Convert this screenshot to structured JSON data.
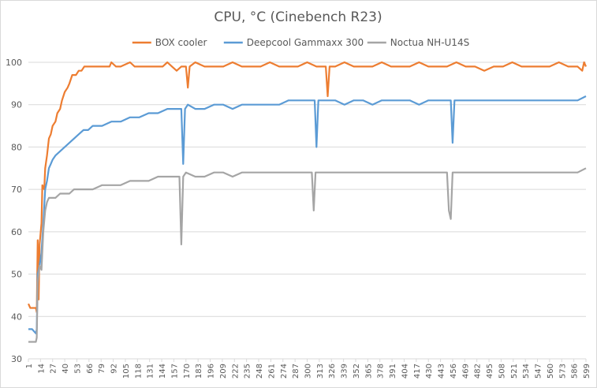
{
  "chart_data": {
    "type": "line",
    "title": "CPU, °C (Cinebench R23)",
    "xlabel": "",
    "ylabel": "",
    "ylim": [
      30,
      100
    ],
    "yticks": [
      30,
      40,
      50,
      60,
      70,
      80,
      90,
      100
    ],
    "xlim": [
      1,
      599
    ],
    "xtick_labels": [
      "1",
      "14",
      "27",
      "40",
      "53",
      "66",
      "79",
      "92",
      "105",
      "118",
      "131",
      "144",
      "157",
      "170",
      "183",
      "196",
      "209",
      "222",
      "235",
      "248",
      "261",
      "274",
      "287",
      "300",
      "313",
      "326",
      "339",
      "352",
      "365",
      "378",
      "391",
      "404",
      "417",
      "430",
      "443",
      "456",
      "469",
      "482",
      "495",
      "508",
      "521",
      "534",
      "547",
      "560",
      "573",
      "586",
      "599"
    ],
    "grid": "horizontal",
    "legend": "top-center",
    "series": [
      {
        "name": "BOX cooler",
        "color": "#ED7D31",
        "points": [
          [
            1,
            43
          ],
          [
            3,
            42
          ],
          [
            5,
            42
          ],
          [
            9,
            42
          ],
          [
            10,
            41
          ],
          [
            11,
            58
          ],
          [
            12,
            44
          ],
          [
            13,
            57
          ],
          [
            15,
            62
          ],
          [
            16,
            71
          ],
          [
            18,
            70
          ],
          [
            19,
            75
          ],
          [
            21,
            78
          ],
          [
            23,
            82
          ],
          [
            25,
            83
          ],
          [
            27,
            85
          ],
          [
            30,
            86
          ],
          [
            32,
            88
          ],
          [
            35,
            89
          ],
          [
            37,
            91
          ],
          [
            40,
            93
          ],
          [
            43,
            94
          ],
          [
            45,
            95
          ],
          [
            48,
            97
          ],
          [
            52,
            97
          ],
          [
            55,
            98
          ],
          [
            58,
            98
          ],
          [
            61,
            99
          ],
          [
            70,
            99
          ],
          [
            80,
            99
          ],
          [
            88,
            99
          ],
          [
            90,
            100
          ],
          [
            95,
            99
          ],
          [
            100,
            99
          ],
          [
            110,
            100
          ],
          [
            115,
            99
          ],
          [
            125,
            99
          ],
          [
            135,
            99
          ],
          [
            145,
            99
          ],
          [
            150,
            100
          ],
          [
            155,
            99
          ],
          [
            160,
            98
          ],
          [
            165,
            99
          ],
          [
            170,
            99
          ],
          [
            172,
            94
          ],
          [
            174,
            99
          ],
          [
            180,
            100
          ],
          [
            190,
            99
          ],
          [
            200,
            99
          ],
          [
            210,
            99
          ],
          [
            220,
            100
          ],
          [
            230,
            99
          ],
          [
            240,
            99
          ],
          [
            250,
            99
          ],
          [
            260,
            100
          ],
          [
            270,
            99
          ],
          [
            280,
            99
          ],
          [
            290,
            99
          ],
          [
            300,
            100
          ],
          [
            310,
            99
          ],
          [
            318,
            99
          ],
          [
            320,
            99
          ],
          [
            322,
            92
          ],
          [
            324,
            99
          ],
          [
            330,
            99
          ],
          [
            340,
            100
          ],
          [
            350,
            99
          ],
          [
            360,
            99
          ],
          [
            370,
            99
          ],
          [
            380,
            100
          ],
          [
            390,
            99
          ],
          [
            400,
            99
          ],
          [
            410,
            99
          ],
          [
            420,
            100
          ],
          [
            430,
            99
          ],
          [
            440,
            99
          ],
          [
            450,
            99
          ],
          [
            460,
            100
          ],
          [
            470,
            99
          ],
          [
            480,
            99
          ],
          [
            490,
            98
          ],
          [
            500,
            99
          ],
          [
            510,
            99
          ],
          [
            520,
            100
          ],
          [
            530,
            99
          ],
          [
            540,
            99
          ],
          [
            550,
            99
          ],
          [
            560,
            99
          ],
          [
            570,
            100
          ],
          [
            580,
            99
          ],
          [
            590,
            99
          ],
          [
            595,
            98
          ],
          [
            597,
            100
          ],
          [
            599,
            99
          ]
        ]
      },
      {
        "name": "Deepcool Gammaxx 300",
        "color": "#5B9BD5",
        "points": [
          [
            1,
            37
          ],
          [
            5,
            37
          ],
          [
            9,
            36
          ],
          [
            10,
            37
          ],
          [
            11,
            50
          ],
          [
            13,
            52
          ],
          [
            15,
            55
          ],
          [
            17,
            62
          ],
          [
            19,
            70
          ],
          [
            21,
            72
          ],
          [
            23,
            75
          ],
          [
            25,
            76
          ],
          [
            27,
            77
          ],
          [
            30,
            78
          ],
          [
            35,
            79
          ],
          [
            40,
            80
          ],
          [
            45,
            81
          ],
          [
            50,
            82
          ],
          [
            55,
            83
          ],
          [
            60,
            84
          ],
          [
            65,
            84
          ],
          [
            70,
            85
          ],
          [
            80,
            85
          ],
          [
            90,
            86
          ],
          [
            100,
            86
          ],
          [
            110,
            87
          ],
          [
            120,
            87
          ],
          [
            130,
            88
          ],
          [
            140,
            88
          ],
          [
            150,
            89
          ],
          [
            160,
            89
          ],
          [
            165,
            89
          ],
          [
            167,
            76
          ],
          [
            169,
            89
          ],
          [
            172,
            90
          ],
          [
            180,
            89
          ],
          [
            190,
            89
          ],
          [
            200,
            90
          ],
          [
            210,
            90
          ],
          [
            220,
            89
          ],
          [
            230,
            90
          ],
          [
            240,
            90
          ],
          [
            250,
            90
          ],
          [
            260,
            90
          ],
          [
            270,
            90
          ],
          [
            280,
            91
          ],
          [
            290,
            91
          ],
          [
            300,
            91
          ],
          [
            308,
            91
          ],
          [
            310,
            80
          ],
          [
            312,
            91
          ],
          [
            320,
            91
          ],
          [
            330,
            91
          ],
          [
            340,
            90
          ],
          [
            350,
            91
          ],
          [
            360,
            91
          ],
          [
            370,
            90
          ],
          [
            380,
            91
          ],
          [
            390,
            91
          ],
          [
            400,
            91
          ],
          [
            410,
            91
          ],
          [
            420,
            90
          ],
          [
            430,
            91
          ],
          [
            440,
            91
          ],
          [
            450,
            91
          ],
          [
            454,
            91
          ],
          [
            456,
            81
          ],
          [
            458,
            91
          ],
          [
            470,
            91
          ],
          [
            480,
            91
          ],
          [
            490,
            91
          ],
          [
            500,
            91
          ],
          [
            510,
            91
          ],
          [
            520,
            91
          ],
          [
            530,
            91
          ],
          [
            540,
            91
          ],
          [
            550,
            91
          ],
          [
            560,
            91
          ],
          [
            570,
            91
          ],
          [
            580,
            91
          ],
          [
            590,
            91
          ],
          [
            599,
            92
          ]
        ]
      },
      {
        "name": "Noctua NH-U14S",
        "color": "#A5A5A5",
        "points": [
          [
            1,
            34
          ],
          [
            5,
            34
          ],
          [
            9,
            34
          ],
          [
            10,
            35
          ],
          [
            11,
            48
          ],
          [
            13,
            52
          ],
          [
            15,
            51
          ],
          [
            17,
            60
          ],
          [
            19,
            65
          ],
          [
            21,
            67
          ],
          [
            23,
            68
          ],
          [
            25,
            68
          ],
          [
            30,
            68
          ],
          [
            35,
            69
          ],
          [
            40,
            69
          ],
          [
            45,
            69
          ],
          [
            50,
            70
          ],
          [
            55,
            70
          ],
          [
            60,
            70
          ],
          [
            70,
            70
          ],
          [
            80,
            71
          ],
          [
            90,
            71
          ],
          [
            100,
            71
          ],
          [
            110,
            72
          ],
          [
            120,
            72
          ],
          [
            130,
            72
          ],
          [
            140,
            73
          ],
          [
            150,
            73
          ],
          [
            160,
            73
          ],
          [
            163,
            73
          ],
          [
            165,
            57
          ],
          [
            167,
            73
          ],
          [
            170,
            74
          ],
          [
            180,
            73
          ],
          [
            190,
            73
          ],
          [
            200,
            74
          ],
          [
            210,
            74
          ],
          [
            220,
            73
          ],
          [
            230,
            74
          ],
          [
            240,
            74
          ],
          [
            250,
            74
          ],
          [
            260,
            74
          ],
          [
            270,
            74
          ],
          [
            280,
            74
          ],
          [
            290,
            74
          ],
          [
            300,
            74
          ],
          [
            305,
            74
          ],
          [
            307,
            65
          ],
          [
            309,
            74
          ],
          [
            320,
            74
          ],
          [
            330,
            74
          ],
          [
            340,
            74
          ],
          [
            350,
            74
          ],
          [
            360,
            74
          ],
          [
            370,
            74
          ],
          [
            380,
            74
          ],
          [
            390,
            74
          ],
          [
            400,
            74
          ],
          [
            410,
            74
          ],
          [
            420,
            74
          ],
          [
            430,
            74
          ],
          [
            440,
            74
          ],
          [
            450,
            74
          ],
          [
            452,
            65
          ],
          [
            454,
            63
          ],
          [
            456,
            74
          ],
          [
            460,
            74
          ],
          [
            470,
            74
          ],
          [
            480,
            74
          ],
          [
            490,
            74
          ],
          [
            500,
            74
          ],
          [
            510,
            74
          ],
          [
            520,
            74
          ],
          [
            530,
            74
          ],
          [
            540,
            74
          ],
          [
            550,
            74
          ],
          [
            560,
            74
          ],
          [
            570,
            74
          ],
          [
            580,
            74
          ],
          [
            590,
            74
          ],
          [
            599,
            75
          ]
        ]
      }
    ]
  }
}
